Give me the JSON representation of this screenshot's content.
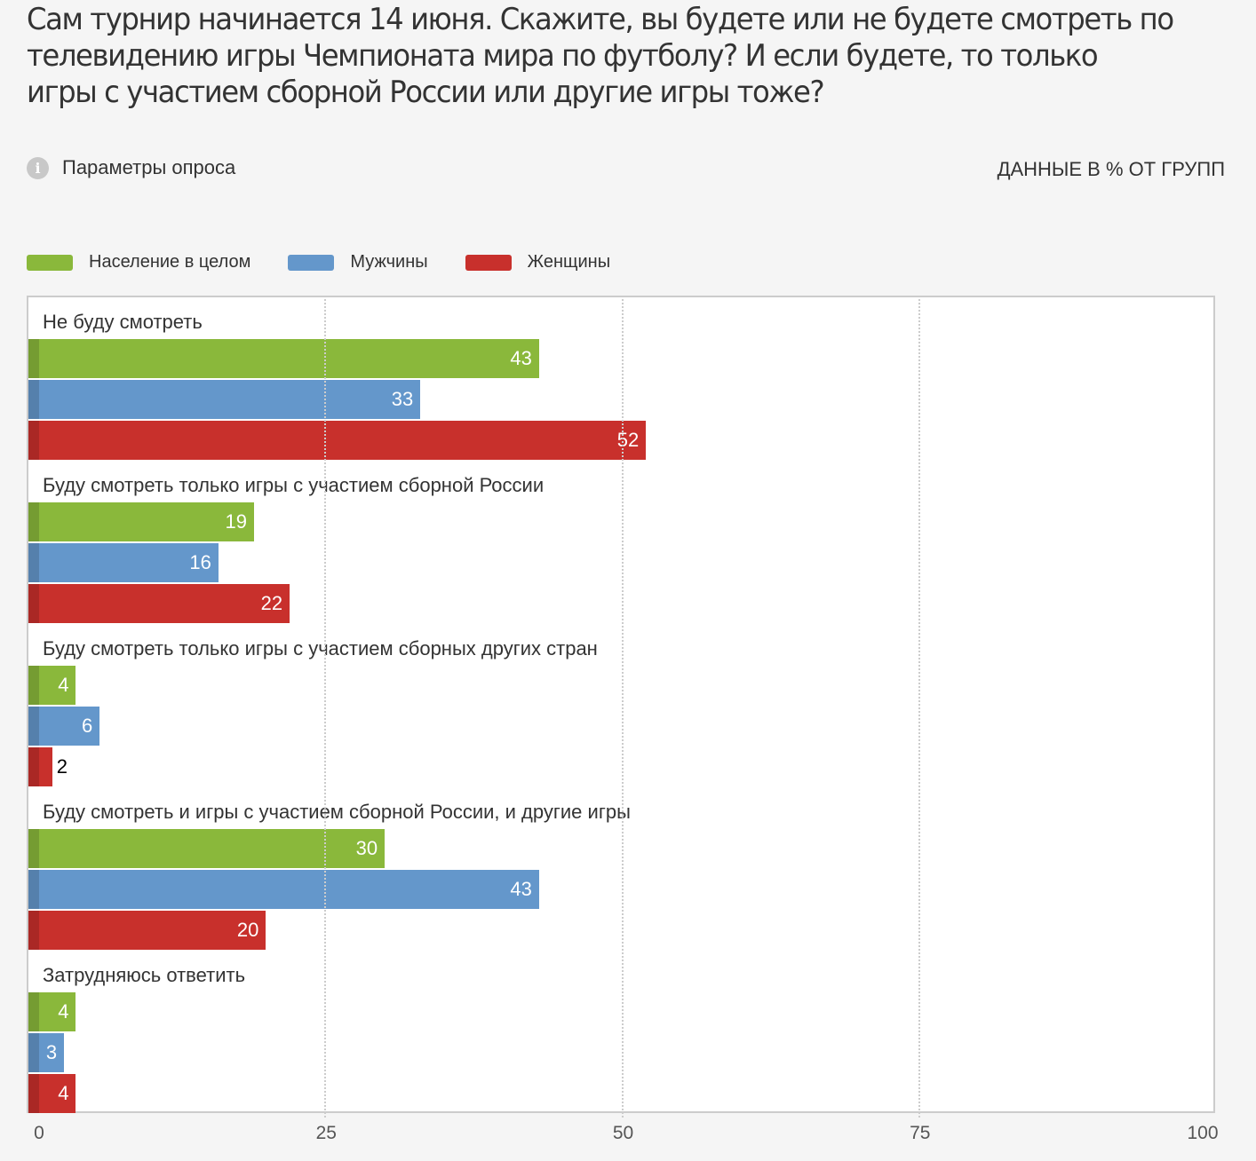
{
  "header": {
    "title": "Сам турнир начинается 14 июня. Скажите, вы будете или не будете смотреть по телевидению игры Чемпионата мира по футболу? И если будете, то только игры с участием сборной России или другие игры тоже?",
    "params_label": "Параметры опроса",
    "units_label": "ДАННЫЕ В % ОТ ГРУПП"
  },
  "chart_data": {
    "type": "bar",
    "orientation": "horizontal",
    "xlim": [
      0,
      100
    ],
    "ticks": [
      "0",
      "25",
      "50",
      "75",
      "100"
    ],
    "legend": [
      {
        "name": "Население в целом",
        "color": "#8ab83b"
      },
      {
        "name": "Мужчины",
        "color": "#6497cb"
      },
      {
        "name": "Женщины",
        "color": "#c8302c"
      }
    ],
    "categories": [
      "Не буду смотреть",
      "Буду смотреть только игры с участием сборной России",
      "Буду смотреть только игры с участием сборных других стран",
      "Буду смотреть и игры с участием сборной России, и другие игры",
      "Затрудняюсь ответить"
    ],
    "series": [
      {
        "name": "Население в целом",
        "values": [
          43,
          19,
          4,
          30,
          4
        ]
      },
      {
        "name": "Мужчины",
        "values": [
          33,
          16,
          6,
          43,
          3
        ]
      },
      {
        "name": "Женщины",
        "values": [
          52,
          22,
          2,
          20,
          4
        ]
      }
    ]
  }
}
